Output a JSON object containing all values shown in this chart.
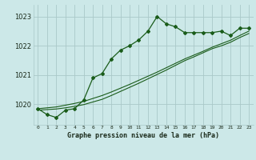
{
  "title": "Graphe pression niveau de la mer (hPa)",
  "bg_color": "#cce8e8",
  "grid_color": "#aac8c8",
  "line_color": "#1a5c1a",
  "x_labels": [
    "0",
    "1",
    "2",
    "3",
    "4",
    "5",
    "6",
    "7",
    "8",
    "9",
    "10",
    "11",
    "12",
    "13",
    "14",
    "15",
    "16",
    "17",
    "18",
    "19",
    "20",
    "21",
    "22",
    "23"
  ],
  "ylim": [
    1019.3,
    1023.4
  ],
  "yticks": [
    1020,
    1021,
    1022,
    1023
  ],
  "main_series": [
    1019.85,
    1019.65,
    1019.55,
    1019.8,
    1019.85,
    1020.15,
    1020.9,
    1021.05,
    1021.55,
    1021.85,
    1022.0,
    1022.2,
    1022.5,
    1023.0,
    1022.75,
    1022.65,
    1022.45,
    1022.45,
    1022.45,
    1022.45,
    1022.5,
    1022.35,
    1022.6,
    1022.6
  ],
  "smooth1": [
    1019.8,
    1019.82,
    1019.84,
    1019.88,
    1019.93,
    1019.99,
    1020.08,
    1020.17,
    1020.3,
    1020.44,
    1020.58,
    1020.72,
    1020.87,
    1021.02,
    1021.17,
    1021.33,
    1021.49,
    1021.62,
    1021.76,
    1021.9,
    1022.0,
    1022.12,
    1022.28,
    1022.42
  ],
  "smooth2": [
    1019.85,
    1019.88,
    1019.91,
    1019.97,
    1020.03,
    1020.1,
    1020.2,
    1020.3,
    1020.42,
    1020.55,
    1020.68,
    1020.82,
    1020.96,
    1021.1,
    1021.25,
    1021.4,
    1021.55,
    1021.68,
    1021.81,
    1021.95,
    1022.07,
    1022.19,
    1022.35,
    1022.5
  ]
}
